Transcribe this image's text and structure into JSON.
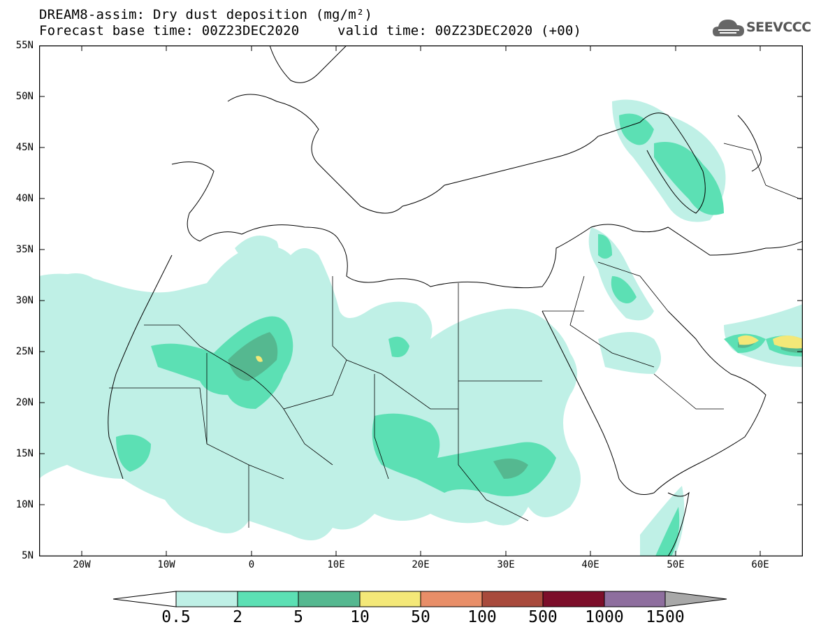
{
  "title": {
    "line1": "DREAM8-assim: Dry dust deposition (mg/m²)",
    "line2_left": "Forecast base time: 00Z23DEC2020",
    "line2_right": "valid time: 00Z23DEC2020 (+00)"
  },
  "logo": {
    "text": "SEEVCCC",
    "icon": "cloud-icon"
  },
  "axes": {
    "lat_labels": [
      "55N",
      "50N",
      "45N",
      "40N",
      "35N",
      "30N",
      "25N",
      "20N",
      "15N",
      "10N",
      "5N"
    ],
    "lon_labels": [
      "20W",
      "10W",
      "0",
      "10E",
      "20E",
      "30E",
      "40E",
      "50E",
      "60E"
    ],
    "lat_range": [
      5,
      55
    ],
    "lon_range": [
      -25,
      65
    ]
  },
  "colorbar": {
    "labels": [
      "0.5",
      "2",
      "5",
      "10",
      "50",
      "100",
      "500",
      "1000",
      "1500"
    ],
    "colors": [
      "#ffffff",
      "#bff0e6",
      "#5ce0b4",
      "#55b890",
      "#f4e878",
      "#e88e68",
      "#a84a3c",
      "#7c0e2a",
      "#8e6e9e",
      "#a8a8a8"
    ]
  }
}
